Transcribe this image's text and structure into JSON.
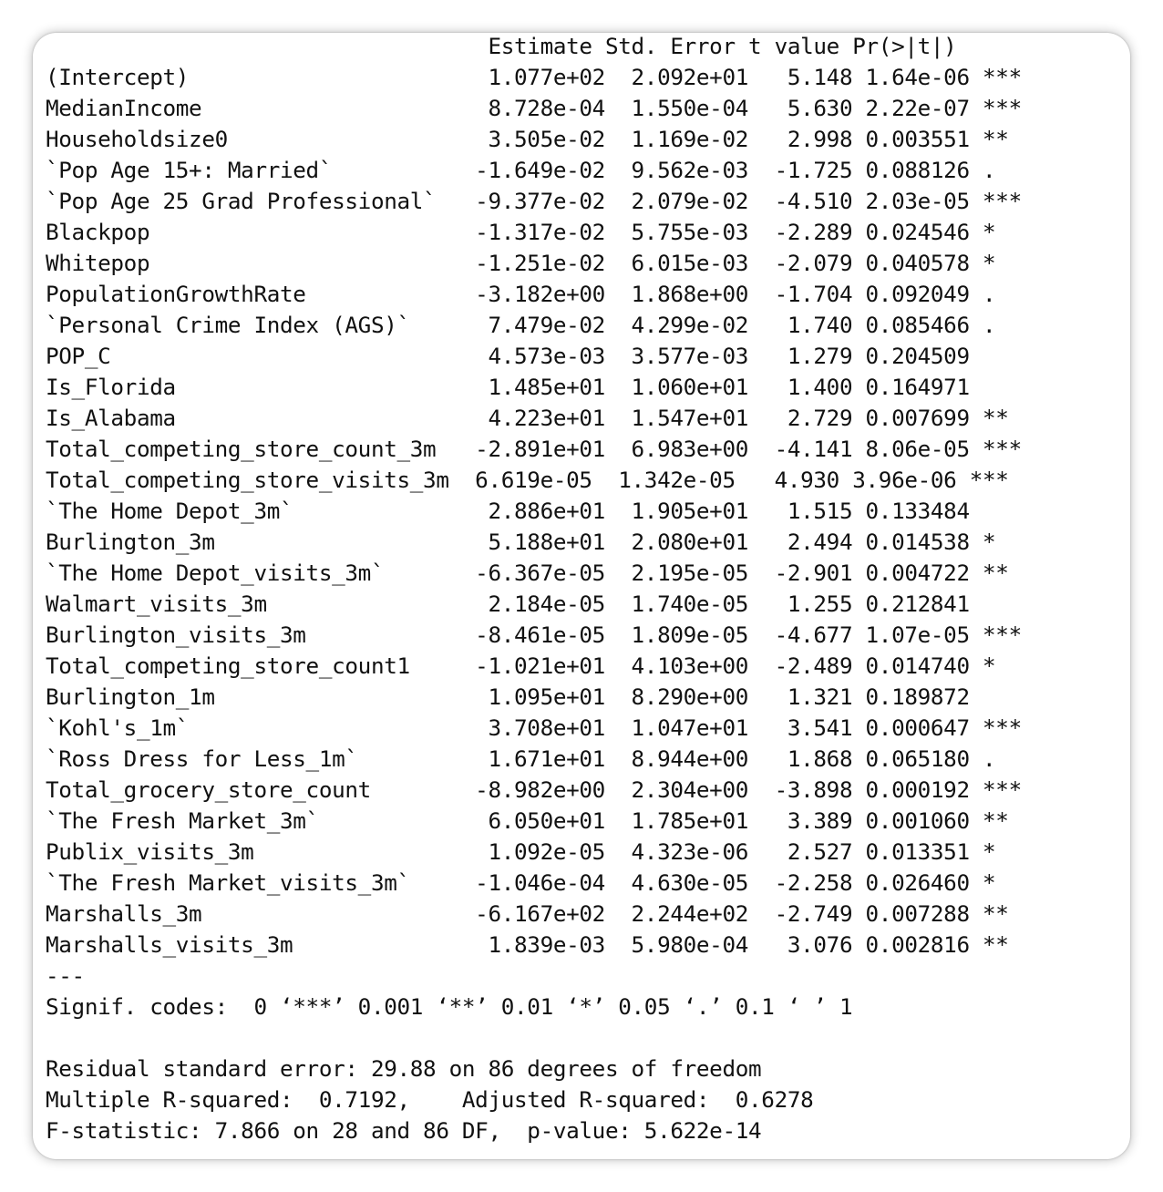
{
  "header": "                                  Estimate Std. Error t value Pr(>|t|)    ",
  "coefficients": [
    {
      "name": "(Intercept)",
      "line": "(Intercept)                       1.077e+02  2.092e+01   5.148 1.64e-06 ***"
    },
    {
      "name": "MedianIncome",
      "line": "MedianIncome                      8.728e-04  1.550e-04   5.630 2.22e-07 ***"
    },
    {
      "name": "Householdsize0",
      "line": "Householdsize0                    3.505e-02  1.169e-02   2.998 0.003551 ** "
    },
    {
      "name": "`Pop Age 15+: Married`",
      "line": "`Pop Age 15+: Married`           -1.649e-02  9.562e-03  -1.725 0.088126 .  "
    },
    {
      "name": "`Pop Age 25 Grad Professional`",
      "line": "`Pop Age 25 Grad Professional`   -9.377e-02  2.079e-02  -4.510 2.03e-05 ***"
    },
    {
      "name": "Blackpop",
      "line": "Blackpop                         -1.317e-02  5.755e-03  -2.289 0.024546 *  "
    },
    {
      "name": "Whitepop",
      "line": "Whitepop                         -1.251e-02  6.015e-03  -2.079 0.040578 *  "
    },
    {
      "name": "PopulationGrowthRate",
      "line": "PopulationGrowthRate             -3.182e+00  1.868e+00  -1.704 0.092049 .  "
    },
    {
      "name": "`Personal Crime Index (AGS)`",
      "line": "`Personal Crime Index (AGS)`      7.479e-02  4.299e-02   1.740 0.085466 .  "
    },
    {
      "name": "POP_C",
      "line": "POP_C                             4.573e-03  3.577e-03   1.279 0.204509    "
    },
    {
      "name": "Is_Florida",
      "line": "Is_Florida                        1.485e+01  1.060e+01   1.400 0.164971    "
    },
    {
      "name": "Is_Alabama",
      "line": "Is_Alabama                        4.223e+01  1.547e+01   2.729 0.007699 ** "
    },
    {
      "name": "Total_competing_store_count_3m",
      "line": "Total_competing_store_count_3m   -2.891e+01  6.983e+00  -4.141 8.06e-05 ***"
    },
    {
      "name": "Total_competing_store_visits_3m",
      "line": "Total_competing_store_visits_3m  6.619e-05  1.342e-05   4.930 3.96e-06 ***"
    },
    {
      "name": "`The Home Depot_3m`",
      "line": "`The Home Depot_3m`               2.886e+01  1.905e+01   1.515 0.133484    "
    },
    {
      "name": "Burlington_3m",
      "line": "Burlington_3m                     5.188e+01  2.080e+01   2.494 0.014538 *  "
    },
    {
      "name": "`The Home Depot_visits_3m`",
      "line": "`The Home Depot_visits_3m`       -6.367e-05  2.195e-05  -2.901 0.004722 ** "
    },
    {
      "name": "Walmart_visits_3m",
      "line": "Walmart_visits_3m                 2.184e-05  1.740e-05   1.255 0.212841    "
    },
    {
      "name": "Burlington_visits_3m",
      "line": "Burlington_visits_3m             -8.461e-05  1.809e-05  -4.677 1.07e-05 ***"
    },
    {
      "name": "Total_competing_store_count1",
      "line": "Total_competing_store_count1     -1.021e+01  4.103e+00  -2.489 0.014740 *  "
    },
    {
      "name": "Burlington_1m",
      "line": "Burlington_1m                     1.095e+01  8.290e+00   1.321 0.189872    "
    },
    {
      "name": "`Kohl's_1m`",
      "line": "`Kohl's_1m`                       3.708e+01  1.047e+01   3.541 0.000647 ***"
    },
    {
      "name": "`Ross Dress for Less_1m`",
      "line": "`Ross Dress for Less_1m`          1.671e+01  8.944e+00   1.868 0.065180 .  "
    },
    {
      "name": "Total_grocery_store_count",
      "line": "Total_grocery_store_count        -8.982e+00  2.304e+00  -3.898 0.000192 ***"
    },
    {
      "name": "`The Fresh Market_3m`",
      "line": "`The Fresh Market_3m`             6.050e+01  1.785e+01   3.389 0.001060 ** "
    },
    {
      "name": "Publix_visits_3m",
      "line": "Publix_visits_3m                  1.092e-05  4.323e-06   2.527 0.013351 *  "
    },
    {
      "name": "`The Fresh Market_visits_3m`",
      "line": "`The Fresh Market_visits_3m`     -1.046e-04  4.630e-05  -2.258 0.026460 *  "
    },
    {
      "name": "Marshalls_3m",
      "line": "Marshalls_3m                     -6.167e+02  2.244e+02  -2.749 0.007288 ** "
    },
    {
      "name": "Marshalls_visits_3m",
      "line": "Marshalls_visits_3m               1.839e-03  5.980e-04   3.076 0.002816 ** "
    }
  ],
  "separator": "---",
  "signif_codes": "Signif. codes:  0 ‘***’ 0.001 ‘**’ 0.01 ‘*’ 0.05 ‘.’ 0.1 ‘ ’ 1",
  "blank": " ",
  "residual_se": "Residual standard error: 29.88 on 86 degrees of freedom",
  "r_squared": "Multiple R-squared:  0.7192,\tAdjusted R-squared:  0.6278 ",
  "f_statistic": "F-statistic: 7.866 on 28 and 86 DF,  p-value: 5.622e-14"
}
